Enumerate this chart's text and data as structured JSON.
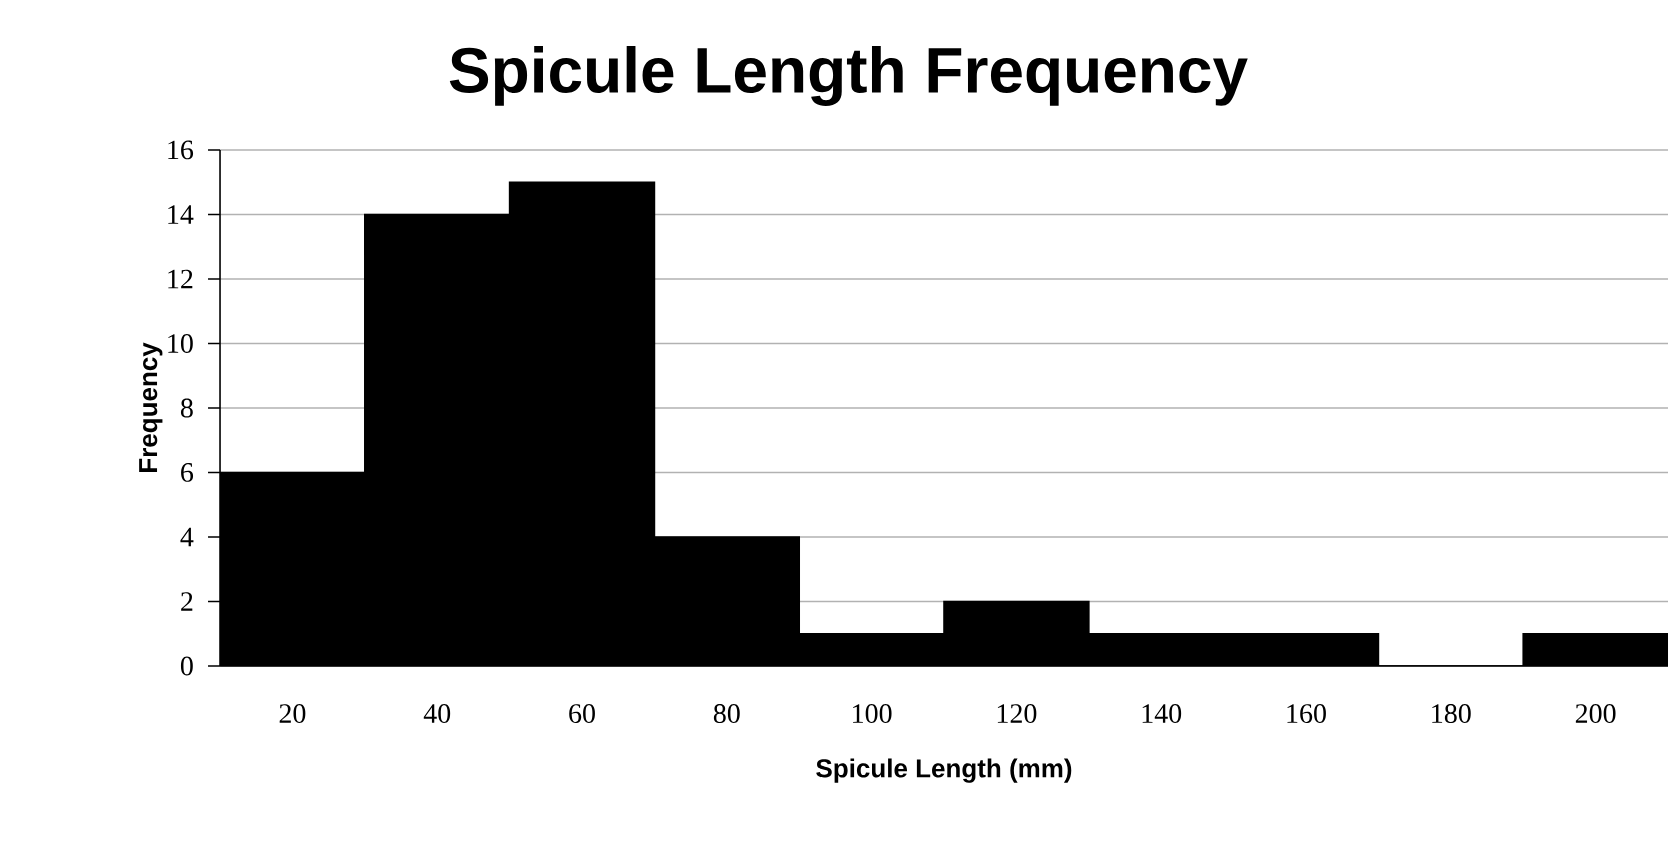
{
  "chart_data": {
    "type": "bar",
    "title": "Spicule Length Frequency",
    "xlabel": "Spicule Length (mm)",
    "ylabel": "Frequency",
    "categories": [
      "20",
      "40",
      "60",
      "80",
      "100",
      "120",
      "140",
      "160",
      "180",
      "200"
    ],
    "values": [
      6,
      14,
      15,
      4,
      1,
      2,
      1,
      1,
      0,
      1
    ],
    "color": "#000000",
    "ylim": [
      0,
      16
    ],
    "yticks": [
      0,
      2,
      4,
      6,
      8,
      10,
      12,
      14,
      16
    ],
    "grid": "y"
  }
}
